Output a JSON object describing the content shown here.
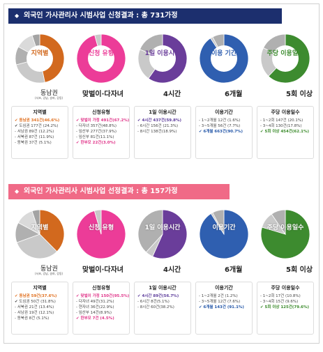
{
  "section1": {
    "title": "외국인 가사관리사 시범사업 신청결과 : 총 731가정",
    "charts": [
      {
        "label": "지역별",
        "callout": "동남권",
        "callout_small": "(서초, 강남, 송파, 강동)",
        "color": "#d2691e",
        "values": [
          {
            "name": "동남권",
            "value": 341,
            "pct": 46.6
          },
          {
            "name": "도심권",
            "value": 177,
            "pct": 24.2
          },
          {
            "name": "서남권",
            "value": 89,
            "pct": 12.2
          },
          {
            "name": "서북권",
            "value": 87,
            "pct": 11.9
          },
          {
            "name": "동북권",
            "value": 37,
            "pct": 5.1
          }
        ]
      },
      {
        "label": "신청 유형",
        "callout": "맞벌이·다자녀",
        "color": "#ec3c98",
        "values": [
          {
            "name": "맞벌이 가정",
            "value": 491,
            "pct": 67.2
          },
          {
            "name": "한부모",
            "value": 22,
            "pct": 3.0
          }
        ]
      },
      {
        "label": "1일 이용시간",
        "callout": "4시간",
        "color": "#6a3d9a",
        "values": [
          {
            "name": "4시간",
            "value": 437,
            "pct": 59.8
          },
          {
            "name": "6시간",
            "value": 156,
            "pct": 21.3
          },
          {
            "name": "8시간",
            "value": 138,
            "pct": 18.9
          }
        ]
      },
      {
        "label": "이용 기간",
        "callout": "6개월",
        "color": "#2f5fb0",
        "values": [
          {
            "name": "1~2개월",
            "value": 12,
            "pct": 1.6
          },
          {
            "name": "3~5개월",
            "value": 56,
            "pct": 7.7
          },
          {
            "name": "6개월",
            "value": 663,
            "pct": 90.7
          }
        ]
      },
      {
        "label": "주당 이용일수",
        "callout": "5회 이상",
        "color": "#3d8b2f",
        "values": [
          {
            "name": "1~2회",
            "value": 147,
            "pct": 20.1
          },
          {
            "name": "3~4회",
            "value": 130,
            "pct": 17.8
          },
          {
            "name": "5회 이상",
            "value": 454,
            "pct": 62.1
          }
        ]
      }
    ],
    "tables": [
      {
        "head": "지역별",
        "rows": [
          {
            "text": "✔ 동남권 341건(46.6%)",
            "hl": "o"
          },
          {
            "text": "✔ 도심권 177건 (24.2%)",
            "hl": ""
          },
          {
            "text": "- 서남권 89건 (12.2%)",
            "hl": ""
          },
          {
            "text": "- 서북권 87건 (11.9%)",
            "hl": ""
          },
          {
            "text": "- 동북권 37건 (5.1%)",
            "hl": ""
          }
        ]
      },
      {
        "head": "신청유형",
        "rows": [
          {
            "text": "✔ 맞벌이 가정 491건(67.2%)",
            "hl": "p"
          },
          {
            "text": "- 다자녀 357건(48.8%)",
            "hl": ""
          },
          {
            "text": "- 임산부 277건(37.9%)",
            "hl": ""
          },
          {
            "text": "- 임신부 81건(11.1%)",
            "hl": ""
          },
          {
            "text": "✔ 한부모 22건(3.0%)",
            "hl": "p"
          }
        ]
      },
      {
        "head": "1일 이용시간",
        "rows": [
          {
            "text": "✔ 4시간 437건(59.8%)",
            "hl": "v"
          },
          {
            "text": "- 6시간 156건 (21.3%)",
            "hl": ""
          },
          {
            "text": "- 8시간 138건(18.9%)",
            "hl": ""
          }
        ]
      },
      {
        "head": "이용기간",
        "rows": [
          {
            "text": "- 1~2개월 12건 (1.6%)",
            "hl": ""
          },
          {
            "text": "- 3~5개월 56건 (7.7%)",
            "hl": ""
          },
          {
            "text": "✔ 6개월 663건(90.7%)",
            "hl": "b"
          }
        ]
      },
      {
        "head": "주당 이용일수",
        "rows": [
          {
            "text": "- 1~2회 147건 (20.1%)",
            "hl": ""
          },
          {
            "text": "- 3~4회 130건(17.8%)",
            "hl": ""
          },
          {
            "text": "✔ 5회 이상 454건(62.1%)",
            "hl": "g"
          }
        ]
      }
    ]
  },
  "section2": {
    "title": "외국인 가사관리사 시범사업 선정결과 : 총 157가정",
    "charts": [
      {
        "label": "지역별",
        "callout": "동남권",
        "callout_small": "(서초, 강남, 송파, 강동)",
        "color": "#d2691e",
        "values": [
          {
            "name": "동남권",
            "value": 59,
            "pct": 37.6
          },
          {
            "name": "도심권",
            "value": 50,
            "pct": 31.8
          },
          {
            "name": "서북권",
            "value": 21,
            "pct": 13.4
          },
          {
            "name": "서남권",
            "value": 19,
            "pct": 12.1
          },
          {
            "name": "동북권",
            "value": 8,
            "pct": 5.1
          }
        ]
      },
      {
        "label": "신청 유형",
        "callout": "맞벌이·다자녀",
        "color": "#ec3c98",
        "values": [
          {
            "name": "맞벌이 가정",
            "value": 150,
            "pct": 95.5
          },
          {
            "name": "한부모",
            "value": 7,
            "pct": 4.5
          }
        ]
      },
      {
        "label": "1일 이용시간",
        "callout": "4시간",
        "color": "#6a3d9a",
        "values": [
          {
            "name": "4시간",
            "value": 89,
            "pct": 56.7
          },
          {
            "name": "6시간",
            "value": 8,
            "pct": 5.1
          },
          {
            "name": "8시간",
            "value": 60,
            "pct": 38.2
          }
        ]
      },
      {
        "label": "이용기간",
        "callout": "6개월",
        "color": "#2f5fb0",
        "values": [
          {
            "name": "1~2개월",
            "value": 2,
            "pct": 1.2
          },
          {
            "name": "3~5개월",
            "value": 12,
            "pct": 7.6
          },
          {
            "name": "6개월",
            "value": 143,
            "pct": 91.1
          }
        ]
      },
      {
        "label": "주당 이용일수",
        "callout": "5회 이상",
        "color": "#3d8b2f",
        "values": [
          {
            "name": "1~2회",
            "value": 17,
            "pct": 10.8
          },
          {
            "name": "3~4회",
            "value": 15,
            "pct": 9.6
          },
          {
            "name": "5회 이상",
            "value": 125,
            "pct": 79.6
          }
        ]
      }
    ],
    "tables": [
      {
        "head": "지역별",
        "rows": [
          {
            "text": "✔ 동남권 59건(37.6%)",
            "hl": "o"
          },
          {
            "text": "✔ 도심권 50건 (31.8%)",
            "hl": ""
          },
          {
            "text": "- 서북권 21건 (13.4%)",
            "hl": ""
          },
          {
            "text": "- 서남권 19건 (12.1%)",
            "hl": ""
          },
          {
            "text": "- 동북권 8건 (5.1%)",
            "hl": ""
          }
        ]
      },
      {
        "head": "신청유형",
        "rows": [
          {
            "text": "✔ 맞벌이 가정 150건(95.5%)",
            "hl": "p"
          },
          {
            "text": "- 다자녀 49건(31.2%)",
            "hl": ""
          },
          {
            "text": "- 현자녀 36건(22.9%)",
            "hl": ""
          },
          {
            "text": "- 임산부 14건(8.9%)",
            "hl": ""
          },
          {
            "text": "✔ 한부모 7건 (4.5%)",
            "hl": "p"
          }
        ]
      },
      {
        "head": "1일 이용시간",
        "rows": [
          {
            "text": "✔ 4시간 89건(56.7%)",
            "hl": "v"
          },
          {
            "text": "- 6시간 8건(5.1%)",
            "hl": ""
          },
          {
            "text": "- 8시간 60건(38.2%)",
            "hl": ""
          }
        ]
      },
      {
        "head": "이용기간",
        "rows": [
          {
            "text": "- 1~2개월 2건 (1.2%)",
            "hl": ""
          },
          {
            "text": "- 3~5개월 12건 (7.6%)",
            "hl": ""
          },
          {
            "text": "✔ 6개월 143건 (91.1%)",
            "hl": "b"
          }
        ]
      },
      {
        "head": "주당 이용일수",
        "rows": [
          {
            "text": "- 1~2회 17건 (10.8%)",
            "hl": ""
          },
          {
            "text": "- 3~4회 15건 (9.6%)",
            "hl": ""
          },
          {
            "text": "✔ 5회 이상 125건(79.6%)",
            "hl": "g"
          }
        ]
      }
    ]
  }
}
